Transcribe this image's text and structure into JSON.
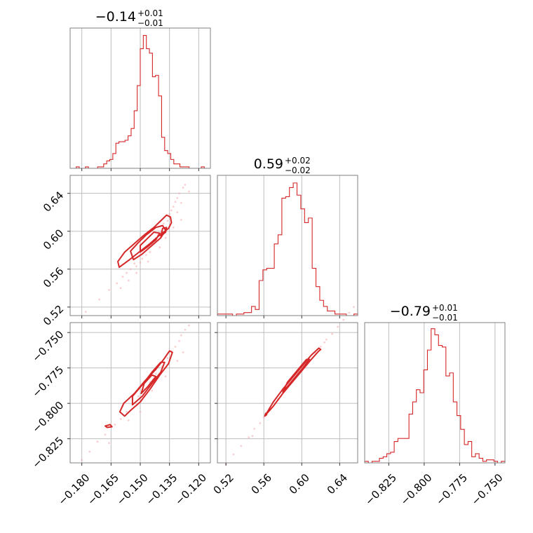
{
  "chart_data": {
    "type": "corner",
    "accent_color": "#d62728",
    "point_color": "#f4a9ad",
    "grid": true,
    "parameters": [
      {
        "title": {
          "median": "−0.14",
          "upper": "+0.01",
          "lower": "−0.01"
        },
        "range": [
          -0.186,
          -0.114
        ],
        "ticks": [
          -0.18,
          -0.165,
          -0.15,
          -0.135,
          -0.12
        ],
        "tick_labels": [
          "−0.180",
          "−0.165",
          "−0.150",
          "−0.135",
          "−0.120"
        ],
        "hist": {
          "counts": [
            0,
            0,
            1,
            0,
            0,
            1,
            0,
            0,
            0,
            1,
            1,
            3,
            5,
            6,
            10,
            17,
            18,
            18,
            19,
            22,
            27,
            39,
            56,
            81,
            90,
            81,
            78,
            62,
            63,
            49,
            21,
            12,
            10,
            6,
            3,
            3,
            1,
            1,
            1,
            0,
            0,
            0,
            0,
            1,
            0,
            0
          ],
          "ymax": 95
        }
      },
      {
        "title": {
          "median": "0.59",
          "upper": "+0.02",
          "lower": "−0.02"
        },
        "range": [
          0.511,
          0.659
        ],
        "ticks": [
          0.52,
          0.56,
          0.6,
          0.64
        ],
        "tick_labels": [
          "0.52",
          "0.56",
          "0.60",
          "0.64"
        ],
        "hist": {
          "counts": [
            1,
            1,
            1,
            1,
            0,
            1,
            1,
            2,
            2,
            6,
            4,
            23,
            30,
            31,
            31,
            47,
            53,
            77,
            78,
            84,
            87,
            79,
            70,
            61,
            64,
            31,
            19,
            10,
            6,
            3,
            3,
            1,
            1,
            1,
            0,
            0,
            1
          ],
          "ymax": 92
        }
      },
      {
        "title": {
          "median": "−0.79",
          "upper": "+0.01",
          "lower": "−0.01"
        },
        "range": [
          -0.842,
          -0.743
        ],
        "ticks": [
          -0.825,
          -0.8,
          -0.775,
          -0.75
        ],
        "tick_labels": [
          "−0.825",
          "−0.800",
          "−0.775",
          "−0.750"
        ],
        "hist": {
          "counts": [
            1,
            0,
            1,
            1,
            3,
            4,
            6,
            7,
            14,
            16,
            16,
            16,
            32,
            40,
            48,
            46,
            61,
            74,
            88,
            84,
            77,
            76,
            57,
            59,
            40,
            31,
            22,
            12,
            14,
            4,
            6,
            3,
            1,
            2,
            2,
            1,
            0,
            1
          ],
          "ymax": 92
        }
      }
    ],
    "pairs": [
      {
        "x_param": 0,
        "y_param": 1,
        "contours": [
          [
            [
              -0.1608,
              0.562
            ],
            [
              -0.1555,
              0.57
            ],
            [
              -0.15,
              0.579
            ],
            [
              -0.145,
              0.587
            ],
            [
              -0.14,
              0.596
            ],
            [
              -0.1355,
              0.603
            ],
            [
              -0.134,
              0.609
            ],
            [
              -0.1345,
              0.615
            ],
            [
              -0.1365,
              0.617
            ],
            [
              -0.1395,
              0.611
            ],
            [
              -0.143,
              0.604
            ],
            [
              -0.148,
              0.596
            ],
            [
              -0.153,
              0.587
            ],
            [
              -0.158,
              0.578
            ],
            [
              -0.1615,
              0.568
            ],
            [
              -0.1608,
              0.562
            ]
          ],
          [
            [
              -0.1535,
              0.57
            ],
            [
              -0.149,
              0.576
            ],
            [
              -0.144,
              0.585
            ],
            [
              -0.1395,
              0.593
            ],
            [
              -0.137,
              0.601
            ],
            [
              -0.1385,
              0.606
            ],
            [
              -0.142,
              0.604
            ],
            [
              -0.147,
              0.596
            ],
            [
              -0.151,
              0.588
            ],
            [
              -0.155,
              0.579
            ],
            [
              -0.1535,
              0.57
            ]
          ],
          [
            [
              -0.15,
              0.578
            ],
            [
              -0.146,
              0.584
            ],
            [
              -0.142,
              0.591
            ],
            [
              -0.14,
              0.598
            ],
            [
              -0.143,
              0.599
            ],
            [
              -0.1465,
              0.592
            ],
            [
              -0.15,
              0.585
            ],
            [
              -0.15,
              0.578
            ]
          ],
          [
            [
              -0.1395,
              0.595
            ],
            [
              -0.137,
              0.599
            ],
            [
              -0.1365,
              0.604
            ],
            [
              -0.1385,
              0.603
            ],
            [
              -0.1395,
              0.595
            ]
          ]
        ],
        "points": [
          [
            -0.178,
            0.515
          ],
          [
            -0.171,
            0.528
          ],
          [
            -0.166,
            0.538
          ],
          [
            -0.162,
            0.545
          ],
          [
            -0.159,
            0.552
          ],
          [
            -0.157,
            0.556
          ],
          [
            -0.155,
            0.56
          ],
          [
            -0.153,
            0.566
          ],
          [
            -0.152,
            0.563
          ],
          [
            -0.149,
            0.571
          ],
          [
            -0.147,
            0.575
          ],
          [
            -0.146,
            0.584
          ],
          [
            -0.144,
            0.587
          ],
          [
            -0.142,
            0.59
          ],
          [
            -0.141,
            0.596
          ],
          [
            -0.139,
            0.6
          ],
          [
            -0.138,
            0.608
          ],
          [
            -0.136,
            0.611
          ],
          [
            -0.135,
            0.618
          ],
          [
            -0.134,
            0.622
          ],
          [
            -0.133,
            0.626
          ],
          [
            -0.132,
            0.631
          ],
          [
            -0.131,
            0.635
          ],
          [
            -0.13,
            0.64
          ],
          [
            -0.128,
            0.646
          ],
          [
            -0.127,
            0.649
          ],
          [
            -0.125,
            0.642
          ],
          [
            -0.129,
            0.63
          ],
          [
            -0.131,
            0.62
          ],
          [
            -0.156,
            0.548
          ],
          [
            -0.16,
            0.54
          ],
          [
            -0.15,
            0.567
          ],
          [
            -0.145,
            0.578
          ],
          [
            -0.14,
            0.583
          ],
          [
            -0.137,
            0.593
          ],
          [
            -0.133,
            0.604
          ],
          [
            -0.129,
            0.612
          ],
          [
            -0.146,
            0.568
          ],
          [
            -0.152,
            0.556
          ]
        ]
      },
      {
        "x_param": 0,
        "y_param": 2,
        "contours": [
          [
            [
              -0.1605,
              -0.806
            ],
            [
              -0.158,
              -0.809
            ],
            [
              -0.155,
              -0.805
            ],
            [
              -0.15,
              -0.799
            ],
            [
              -0.145,
              -0.79
            ],
            [
              -0.14,
              -0.78
            ],
            [
              -0.1355,
              -0.772
            ],
            [
              -0.1335,
              -0.764
            ],
            [
              -0.135,
              -0.763
            ],
            [
              -0.138,
              -0.769
            ],
            [
              -0.142,
              -0.776
            ],
            [
              -0.1475,
              -0.784
            ],
            [
              -0.153,
              -0.793
            ],
            [
              -0.1585,
              -0.8
            ],
            [
              -0.1605,
              -0.806
            ]
          ],
          [
            [
              -0.154,
              -0.801
            ],
            [
              -0.149,
              -0.795
            ],
            [
              -0.144,
              -0.786
            ],
            [
              -0.1395,
              -0.778
            ],
            [
              -0.1375,
              -0.771
            ],
            [
              -0.1395,
              -0.771
            ],
            [
              -0.144,
              -0.778
            ],
            [
              -0.149,
              -0.787
            ],
            [
              -0.154,
              -0.795
            ],
            [
              -0.154,
              -0.801
            ]
          ],
          [
            [
              -0.1495,
              -0.793
            ],
            [
              -0.146,
              -0.788
            ],
            [
              -0.142,
              -0.781
            ],
            [
              -0.144,
              -0.78
            ],
            [
              -0.148,
              -0.786
            ],
            [
              -0.1495,
              -0.793
            ]
          ],
          [
            [
              -0.168,
              -0.816
            ],
            [
              -0.1655,
              -0.815
            ],
            [
              -0.1645,
              -0.8165
            ],
            [
              -0.167,
              -0.817
            ],
            [
              -0.168,
              -0.816
            ]
          ]
        ],
        "points": [
          [
            -0.18,
            -0.84
          ],
          [
            -0.176,
            -0.834
          ],
          [
            -0.172,
            -0.827
          ],
          [
            -0.168,
            -0.822
          ],
          [
            -0.166,
            -0.828
          ],
          [
            -0.163,
            -0.815
          ],
          [
            -0.16,
            -0.811
          ],
          [
            -0.157,
            -0.806
          ],
          [
            -0.154,
            -0.801
          ],
          [
            -0.151,
            -0.795
          ],
          [
            -0.148,
            -0.79
          ],
          [
            -0.145,
            -0.785
          ],
          [
            -0.142,
            -0.779
          ],
          [
            -0.139,
            -0.774
          ],
          [
            -0.136,
            -0.768
          ],
          [
            -0.134,
            -0.763
          ],
          [
            -0.132,
            -0.76
          ],
          [
            -0.13,
            -0.756
          ],
          [
            -0.129,
            -0.752
          ],
          [
            -0.127,
            -0.748
          ],
          [
            -0.125,
            -0.745
          ],
          [
            -0.128,
            -0.764
          ],
          [
            -0.131,
            -0.77
          ],
          [
            -0.156,
            -0.812
          ],
          [
            -0.159,
            -0.802
          ],
          [
            -0.15,
            -0.806
          ],
          [
            -0.144,
            -0.791
          ],
          [
            -0.137,
            -0.781
          ]
        ]
      },
      {
        "x_param": 1,
        "y_param": 2,
        "contours": [
          [
            [
              0.562,
              -0.808
            ],
            [
              0.57,
              -0.802
            ],
            [
              0.58,
              -0.793
            ],
            [
              0.59,
              -0.785
            ],
            [
              0.6,
              -0.777
            ],
            [
              0.61,
              -0.769
            ],
            [
              0.618,
              -0.763
            ],
            [
              0.62,
              -0.762
            ],
            [
              0.618,
              -0.761
            ],
            [
              0.61,
              -0.766
            ],
            [
              0.6,
              -0.774
            ],
            [
              0.59,
              -0.782
            ],
            [
              0.58,
              -0.79
            ],
            [
              0.57,
              -0.799
            ],
            [
              0.562,
              -0.808
            ]
          ],
          [
            [
              0.58,
              -0.792
            ],
            [
              0.59,
              -0.784
            ],
            [
              0.6,
              -0.776
            ],
            [
              0.608,
              -0.769
            ],
            [
              0.605,
              -0.769
            ],
            [
              0.595,
              -0.777
            ],
            [
              0.585,
              -0.785
            ],
            [
              0.58,
              -0.792
            ]
          ],
          [
            [
              0.562,
              -0.807
            ],
            [
              0.561,
              -0.809
            ],
            [
              0.563,
              -0.808
            ],
            [
              0.562,
              -0.807
            ]
          ]
        ],
        "points": [
          [
            0.52,
            -0.843
          ],
          [
            0.528,
            -0.836
          ],
          [
            0.536,
            -0.83
          ],
          [
            0.544,
            -0.824
          ],
          [
            0.55,
            -0.818
          ],
          [
            0.556,
            -0.814
          ],
          [
            0.56,
            -0.81
          ],
          [
            0.566,
            -0.805
          ],
          [
            0.572,
            -0.8
          ],
          [
            0.578,
            -0.795
          ],
          [
            0.584,
            -0.789
          ],
          [
            0.59,
            -0.784
          ],
          [
            0.596,
            -0.779
          ],
          [
            0.602,
            -0.774
          ],
          [
            0.608,
            -0.769
          ],
          [
            0.614,
            -0.764
          ],
          [
            0.62,
            -0.76
          ],
          [
            0.626,
            -0.755
          ],
          [
            0.632,
            -0.751
          ],
          [
            0.638,
            -0.746
          ],
          [
            0.644,
            -0.741
          ],
          [
            0.65,
            -0.736
          ],
          [
            0.655,
            -0.732
          ],
          [
            0.548,
            -0.823
          ],
          [
            0.575,
            -0.797
          ],
          [
            0.598,
            -0.778
          ],
          [
            0.624,
            -0.757
          ]
        ]
      }
    ]
  }
}
